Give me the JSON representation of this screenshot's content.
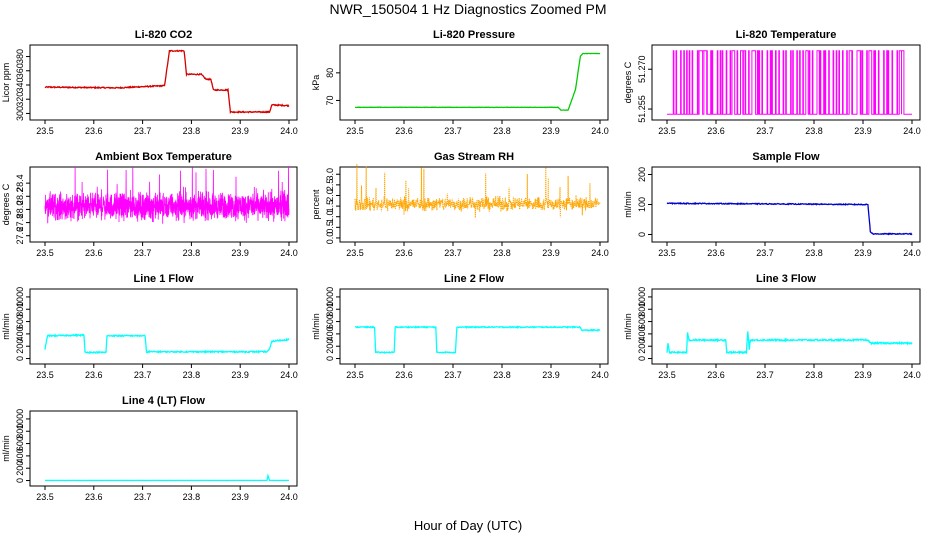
{
  "figure": {
    "title": "NWR_150504  1 Hz Diagnostics Zoomed PM",
    "xlabel": "Hour of Day (UTC)"
  },
  "chart_data": [
    {
      "id": "li820-co2",
      "type": "line",
      "title": "Li-820 CO2",
      "ylabel": "Licor ppm",
      "xlim": [
        23.5,
        24.0
      ],
      "ylim": [
        295,
        392
      ],
      "yticks": [
        300,
        320,
        340,
        360,
        380
      ],
      "color": "#d40000",
      "noise": 0.8,
      "x": [
        23.5,
        23.65,
        23.745,
        23.755,
        23.785,
        23.79,
        23.82,
        23.83,
        23.84,
        23.845,
        23.875,
        23.88,
        23.96,
        23.965,
        24.0
      ],
      "y": [
        337,
        336,
        339,
        388,
        388,
        355,
        355,
        348,
        348,
        333,
        333,
        302,
        302,
        312,
        311
      ]
    },
    {
      "id": "li820-pressure",
      "type": "line",
      "title": "Li-820 Pressure",
      "ylabel": "kPa",
      "xlim": [
        23.5,
        24.0
      ],
      "ylim": [
        64,
        89
      ],
      "yticks": [
        70,
        80
      ],
      "color": "#00cc00",
      "noise": 0.05,
      "x": [
        23.5,
        23.915,
        23.92,
        23.935,
        23.95,
        23.96,
        23.965,
        24.0
      ],
      "y": [
        67.5,
        67.5,
        66.5,
        66.5,
        74,
        86,
        87,
        87
      ]
    },
    {
      "id": "li820-temperature",
      "type": "step-spikes",
      "title": "Li-820 Temperature",
      "ylabel": "degrees C",
      "xlim": [
        23.5,
        24.0
      ],
      "ylim": [
        51.252,
        51.278
      ],
      "yticks": [
        51.255,
        51.27
      ],
      "color": "#ff00ff",
      "baseline": 51.253,
      "spike_value": 51.277,
      "spike_count": 70
    },
    {
      "id": "ambient-box-temperature",
      "type": "noise",
      "title": "Ambient Box Temperature",
      "ylabel": "degrees C",
      "xlim": [
        23.5,
        24.0
      ],
      "ylim": [
        27.55,
        28.6
      ],
      "yticks": [
        27.6,
        27.8,
        28.0,
        28.2,
        28.4
      ],
      "color": "#ff00ff",
      "center": 28.05,
      "spread": 0.18,
      "extreme": 0.45,
      "points": 1800
    },
    {
      "id": "gas-stream-rh",
      "type": "noise",
      "title": "Gas Stream RH",
      "ylabel": "percent",
      "xlim": [
        23.5,
        24.0
      ],
      "ylim": [
        -0.05,
        3.2
      ],
      "yticks": [
        0.0,
        0.5,
        1.0,
        1.5,
        2.0,
        2.5,
        3.0
      ],
      "color": "#ffa500",
      "center": 1.6,
      "spread": 0.3,
      "extreme": 1.4,
      "points": 900,
      "dotted": true
    },
    {
      "id": "sample-flow",
      "type": "line",
      "title": "Sample Flow",
      "ylabel": "ml/min",
      "xlim": [
        23.5,
        24.0
      ],
      "ylim": [
        -15,
        215
      ],
      "yticks": [
        0,
        100,
        200
      ],
      "color": "#0000cd",
      "noise": 1.5,
      "x": [
        23.5,
        23.9,
        23.91,
        23.915,
        23.92,
        24.0
      ],
      "y": [
        104,
        100,
        100,
        10,
        2,
        2
      ]
    },
    {
      "id": "line-1-flow",
      "type": "line",
      "title": "Line 1 Flow",
      "ylabel": "ml/min",
      "xlim": [
        23.5,
        24.0
      ],
      "ylim": [
        -40,
        1080
      ],
      "yticks": [
        0,
        200,
        400,
        600,
        800,
        1000
      ],
      "color": "#00ffff",
      "noise": 10,
      "x": [
        23.5,
        23.505,
        23.58,
        23.582,
        23.625,
        23.627,
        23.705,
        23.708,
        23.955,
        23.96,
        23.965,
        24.0
      ],
      "y": [
        150,
        370,
        380,
        100,
        100,
        370,
        370,
        110,
        110,
        150,
        280,
        310
      ]
    },
    {
      "id": "line-2-flow",
      "type": "line",
      "title": "Line 2 Flow",
      "ylabel": "ml/min",
      "xlim": [
        23.5,
        24.0
      ],
      "ylim": [
        -40,
        1080
      ],
      "yticks": [
        0,
        200,
        400,
        600,
        800,
        1000
      ],
      "color": "#00ffff",
      "noise": 8,
      "x": [
        23.5,
        23.54,
        23.542,
        23.58,
        23.582,
        23.665,
        23.667,
        23.705,
        23.708,
        23.96,
        23.962,
        24.0
      ],
      "y": [
        510,
        510,
        100,
        100,
        510,
        510,
        100,
        100,
        510,
        510,
        460,
        460
      ]
    },
    {
      "id": "line-3-flow",
      "type": "line",
      "title": "Line 3 Flow",
      "ylabel": "ml/min",
      "xlim": [
        23.5,
        24.0
      ],
      "ylim": [
        -40,
        1080
      ],
      "yticks": [
        0,
        200,
        400,
        600,
        800,
        1000
      ],
      "color": "#00ffff",
      "noise": 12,
      "x": [
        23.5,
        23.502,
        23.505,
        23.54,
        23.542,
        23.545,
        23.62,
        23.622,
        23.662,
        23.665,
        23.668,
        23.67,
        23.91,
        23.915,
        24.0
      ],
      "y": [
        100,
        250,
        100,
        100,
        420,
        300,
        300,
        100,
        100,
        450,
        150,
        300,
        300,
        250,
        250
      ]
    },
    {
      "id": "line-4-lt-flow",
      "type": "line",
      "title": "Line 4 (LT) Flow",
      "ylabel": "ml/min",
      "xlim": [
        23.5,
        24.0
      ],
      "ylim": [
        -40,
        1080
      ],
      "yticks": [
        0,
        200,
        400,
        600,
        800,
        1000
      ],
      "color": "#00ffff",
      "noise": 1,
      "x": [
        23.5,
        23.955,
        23.957,
        23.96,
        24.0
      ],
      "y": [
        2,
        2,
        80,
        2,
        2
      ]
    }
  ],
  "xticks": [
    23.5,
    23.6,
    23.7,
    23.8,
    23.9,
    24.0
  ]
}
